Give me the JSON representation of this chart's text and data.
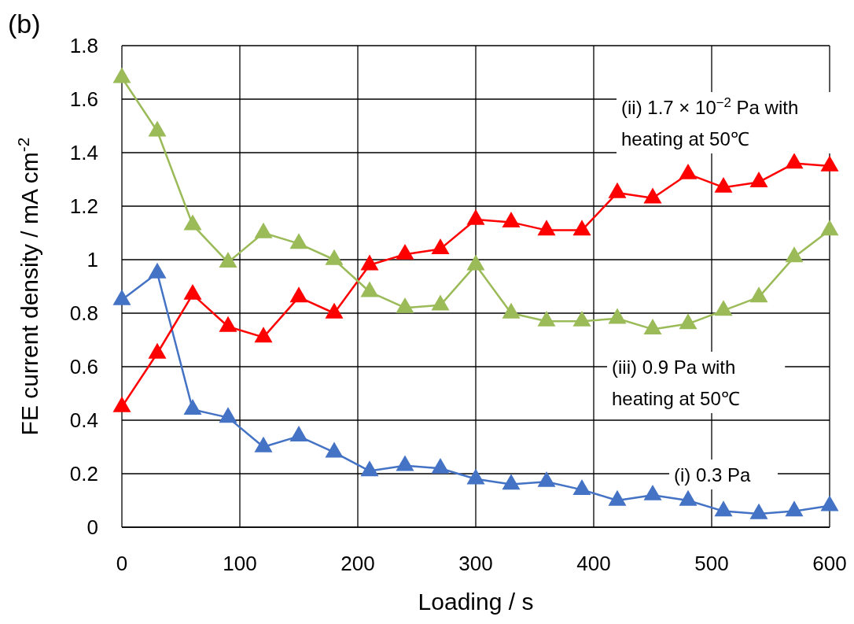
{
  "chart_data": {
    "type": "line",
    "title": "(b)",
    "xlabel": "Loading / s",
    "ylabel": "FE current density / mA cm$^{-2}$",
    "x": [
      0,
      30,
      60,
      90,
      120,
      150,
      180,
      210,
      240,
      270,
      300,
      330,
      360,
      390,
      420,
      450,
      480,
      510,
      540,
      570,
      600
    ],
    "xlim": [
      0,
      600
    ],
    "xticks": [
      0,
      100,
      200,
      300,
      400,
      500,
      600
    ],
    "ylim": [
      0,
      1.8
    ],
    "yticks": [
      0,
      0.2,
      0.4,
      0.6,
      0.8,
      1,
      1.2,
      1.4,
      1.6,
      1.8
    ],
    "grid": true,
    "marker": "triangle",
    "line_style": "solid",
    "series": [
      {
        "name": "(i) 0.3 Pa",
        "color": "#4472c4",
        "values": [
          0.85,
          0.95,
          0.44,
          0.41,
          0.3,
          0.34,
          0.28,
          0.21,
          0.23,
          0.22,
          0.18,
          0.16,
          0.17,
          0.14,
          0.1,
          0.12,
          0.1,
          0.06,
          0.05,
          0.06,
          0.08
        ]
      },
      {
        "name": "(ii) 1.7 × 10$^{−2}$ Pa with heating at 50℃",
        "color": "#ff0000",
        "values": [
          0.45,
          0.65,
          0.87,
          0.75,
          0.71,
          0.86,
          0.8,
          0.98,
          1.02,
          1.04,
          1.15,
          1.14,
          1.11,
          1.11,
          1.25,
          1.23,
          1.32,
          1.27,
          1.29,
          1.36,
          1.35
        ]
      },
      {
        "name": "(iii) 0.9 Pa with heating at 50℃",
        "color": "#9bbb59",
        "values": [
          1.68,
          1.48,
          1.13,
          0.99,
          1.1,
          1.06,
          1.0,
          0.88,
          0.82,
          0.83,
          0.98,
          0.8,
          0.77,
          0.77,
          0.78,
          0.74,
          0.76,
          0.81,
          0.86,
          1.01,
          1.11
        ]
      }
    ]
  }
}
